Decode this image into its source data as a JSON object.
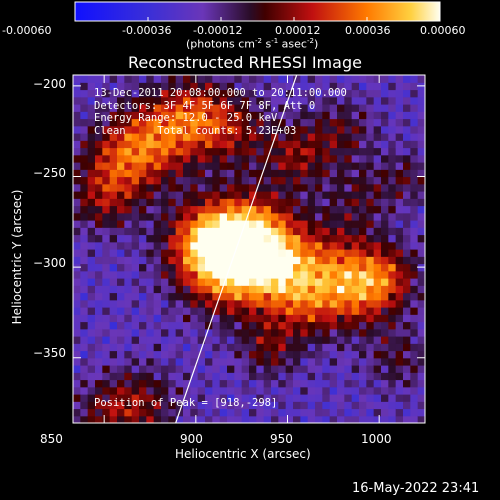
{
  "colorbar": {
    "ticks": [
      "-0.00060",
      "-0.00036",
      "-0.00012",
      "0.00012",
      "0.00036",
      "0.00060"
    ],
    "unit_label": "(photons cm",
    "unit_exp1": "-2",
    "unit_mid1": " s",
    "unit_exp2": "-1",
    "unit_mid2": " asec",
    "unit_exp3": "-2",
    "unit_end": ")",
    "range": [
      -0.0006,
      0.0006
    ]
  },
  "chart_data": {
    "type": "heatmap",
    "title": "Reconstructed RHESSI Image",
    "xlabel": "Heliocentric X (arcsec)",
    "ylabel": "Heliocentric Y (arcsec)",
    "xlim": [
      833,
      1025
    ],
    "ylim": [
      -386,
      -194
    ],
    "x_ticks": [
      850,
      900,
      950,
      1000
    ],
    "y_ticks": [
      -200,
      -250,
      -300,
      -350
    ],
    "x_tick_labels": [
      "850",
      "900",
      "950",
      "1000"
    ],
    "y_tick_labels": [
      "−200",
      "−250",
      "−300",
      "−350"
    ],
    "annotations": [
      "13-Dec-2011 20:08:00.000 to 20:11:00.000",
      "Detectors: 3F 4F 5F 6F 7F 8F, Att 0",
      "Energy Range: 12.0 - 25.0 keV",
      "Clean     Total counts: 5.23E+03"
    ],
    "peak_label": "Position of Peak = [918,-298]",
    "peak": [
      918,
      -298
    ],
    "limb_line": [
      [
        889,
        -386
      ],
      [
        955,
        -194
      ]
    ]
  },
  "footer": {
    "timestamp": "16-May-2022 23:41"
  }
}
